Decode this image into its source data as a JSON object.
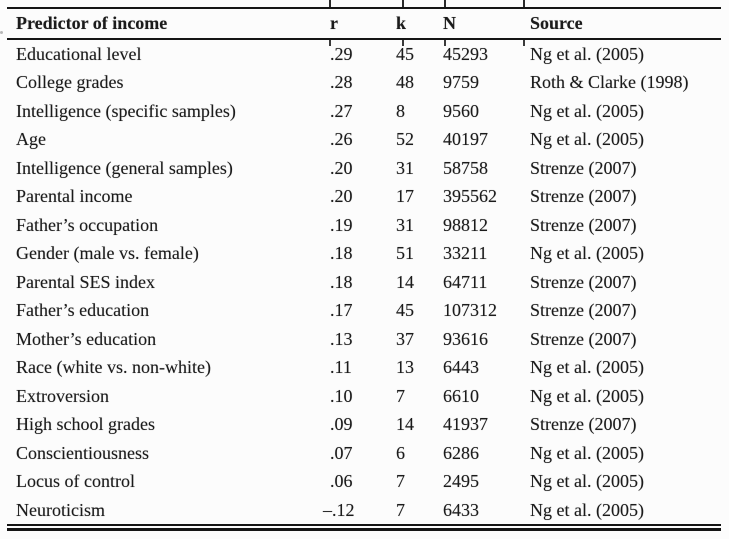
{
  "colors": {
    "background": "#fcfcfc",
    "text": "#1b1b1b",
    "rule": "#151515"
  },
  "table": {
    "headers": [
      "Predictor of income",
      "r",
      "k",
      "N",
      "Source"
    ],
    "rows": [
      {
        "predictor": "Educational level",
        "r": ".29",
        "k": "45",
        "n": "45293",
        "source": "Ng et al. (2005)"
      },
      {
        "predictor": "College grades",
        "r": ".28",
        "k": "48",
        "n": "9759",
        "source": "Roth & Clarke (1998)"
      },
      {
        "predictor": "Intelligence (specific samples)",
        "r": ".27",
        "k": "8",
        "n": "9560",
        "source": "Ng et al. (2005)"
      },
      {
        "predictor": "Age",
        "r": ".26",
        "k": "52",
        "n": "40197",
        "source": "Ng et al. (2005)"
      },
      {
        "predictor": "Intelligence (general samples)",
        "r": ".20",
        "k": "31",
        "n": "58758",
        "source": "Strenze (2007)"
      },
      {
        "predictor": "Parental income",
        "r": ".20",
        "k": "17",
        "n": "395562",
        "source": "Strenze (2007)"
      },
      {
        "predictor": "Father’s occupation",
        "r": ".19",
        "k": "31",
        "n": "98812",
        "source": "Strenze (2007)"
      },
      {
        "predictor": "Gender (male vs. female)",
        "r": ".18",
        "k": "51",
        "n": "33211",
        "source": "Ng et al. (2005)"
      },
      {
        "predictor": "Parental SES index",
        "r": ".18",
        "k": "14",
        "n": "64711",
        "source": "Strenze (2007)"
      },
      {
        "predictor": "Father’s education",
        "r": ".17",
        "k": "45",
        "n": "107312",
        "source": "Strenze (2007)"
      },
      {
        "predictor": "Mother’s education",
        "r": ".13",
        "k": "37",
        "n": "93616",
        "source": "Strenze (2007)"
      },
      {
        "predictor": "Race (white vs. non-white)",
        "r": ".11",
        "k": "13",
        "n": "6443",
        "source": "Ng et al. (2005)"
      },
      {
        "predictor": "Extroversion",
        "r": ".10",
        "k": "7",
        "n": "6610",
        "source": "Ng et al. (2005)"
      },
      {
        "predictor": "High school grades",
        "r": ".09",
        "k": "14",
        "n": "41937",
        "source": "Strenze (2007)"
      },
      {
        "predictor": "Conscientiousness",
        "r": ".07",
        "k": "6",
        "n": "6286",
        "source": "Ng et al. (2005)"
      },
      {
        "predictor": "Locus of control",
        "r": ".06",
        "k": "7",
        "n": "2495",
        "source": "Ng et al. (2005)"
      },
      {
        "predictor": "Neuroticism",
        "r": "–.12",
        "k": "7",
        "n": "6433",
        "source": "Ng et al. (2005)"
      }
    ]
  }
}
